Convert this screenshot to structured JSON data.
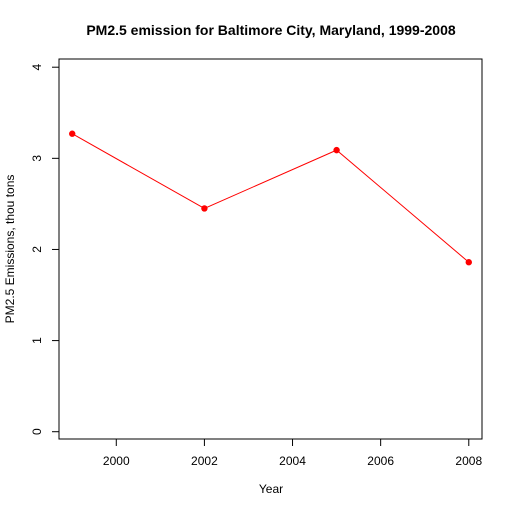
{
  "chart_data": {
    "type": "line",
    "title": "PM2.5 emission for Baltimore City, Maryland, 1999-2008",
    "xlabel": "Year",
    "ylabel": "PM2.5 Emissions, thou tons",
    "x": [
      1999,
      2002,
      2005,
      2008
    ],
    "series": [
      {
        "values": [
          3.27,
          2.45,
          3.09,
          1.86
        ],
        "color": "#ff0000"
      }
    ],
    "xlim": [
      1998.7,
      2008.3
    ],
    "ylim": [
      -0.08,
      4.09
    ],
    "xticks": [
      2000,
      2002,
      2004,
      2006,
      2008
    ],
    "yticks": [
      0,
      1,
      2,
      3,
      4
    ],
    "grid": false,
    "legend": "none",
    "marker": "filled-circle"
  }
}
